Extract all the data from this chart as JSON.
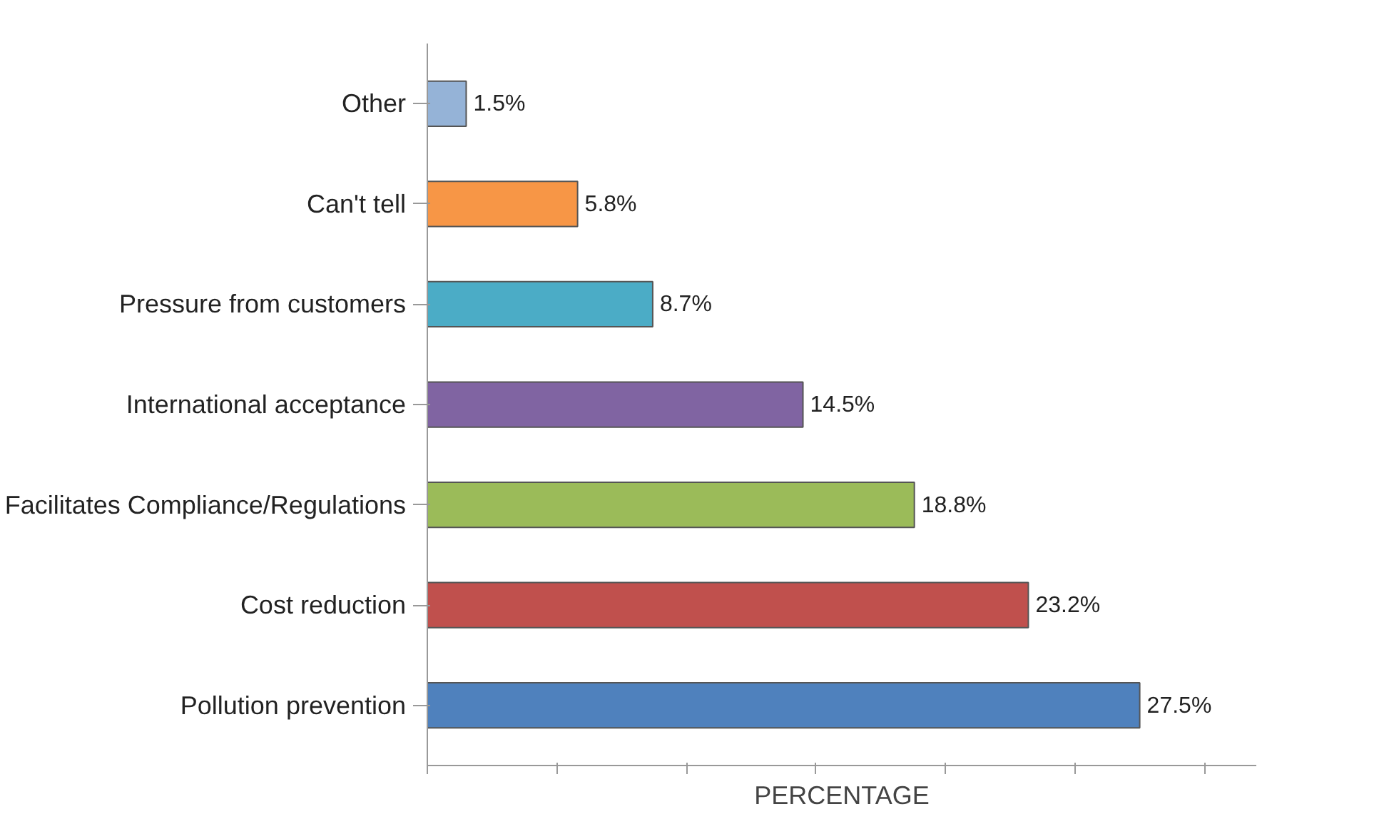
{
  "chart_data": {
    "type": "bar",
    "orientation": "horizontal",
    "xlabel": "PERCENTAGE",
    "categories": [
      "Other",
      "Can't tell",
      "Pressure from customers",
      "International acceptance",
      "Facilitates Compliance/Regulations",
      "Cost reduction",
      "Pollution prevention"
    ],
    "values": [
      1.5,
      5.8,
      8.7,
      14.5,
      18.8,
      23.2,
      27.5
    ],
    "colors": [
      "#95b3d7",
      "#f79646",
      "#4bacc6",
      "#8064a2",
      "#9bbb59",
      "#c0504d",
      "#4f81bd"
    ],
    "value_labels": [
      "1.5%",
      "5.8%",
      "8.7%",
      "14.5%",
      "18.8%",
      "23.2%",
      "27.5%"
    ],
    "xlim": [
      0,
      32
    ],
    "xticks": [
      {
        "value": 0,
        "label": null
      },
      {
        "value": 5,
        "label": null
      },
      {
        "value": 10,
        "label": null
      },
      {
        "value": 15,
        "label": null
      },
      {
        "value": 20,
        "label": null
      },
      {
        "value": 25,
        "label": null
      },
      {
        "value": 30,
        "label": null
      }
    ],
    "tick_labels": "y",
    "grid": false
  }
}
